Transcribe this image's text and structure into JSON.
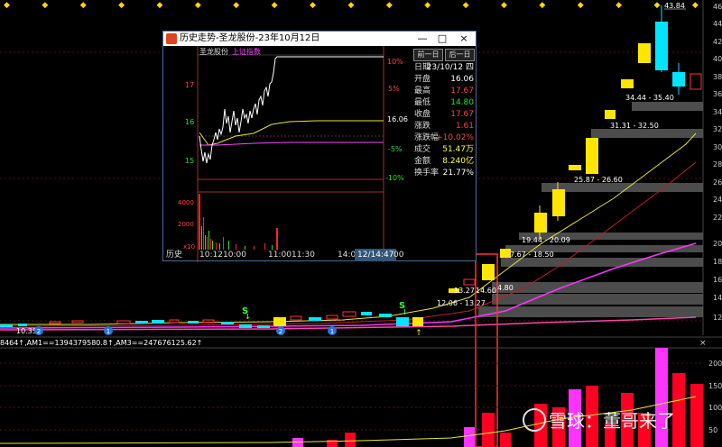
{
  "colors": {
    "up": "#ff3333",
    "down": "#00e5ff",
    "ma1": "#e6e633",
    "ma2": "#cc2222",
    "ma3": "#ff33ff",
    "ma4": "#ff44aa",
    "band": "#555555",
    "yellow_box": "#ffe600"
  },
  "main_chart": {
    "top_markers": "◆ ◆ ◆ ◆ ◆ ◆ ◆ ◆ ◆ ◆ ◆ ◆ ◆ ◆ ◆ ◆ ◆ ◆ ◆ ◆ ◆ ◆ ◆",
    "price_axis": [
      "46",
      "44",
      "42",
      "40",
      "38",
      "36",
      "34",
      "32",
      "30",
      "28",
      "26",
      "24",
      "22",
      "20",
      "18",
      "16",
      "14",
      "12"
    ],
    "high_label": "43.84",
    "low_label": "10.35",
    "range_labels": [
      {
        "text": "34.44 - 35.40"
      },
      {
        "text": "31.31 - 32.50"
      },
      {
        "text": "25.87 - 26.60"
      },
      {
        "text": "19.44 - 20.09"
      },
      {
        "text": "7.67 - 18.50"
      },
      {
        "text": "13.27"
      },
      {
        "text": "14.60"
      },
      {
        "text": "4.80"
      },
      {
        "text": "12.06 - 13.27"
      }
    ],
    "signal_labels": [
      "S",
      "S"
    ],
    "circle_markers": [
      "2",
      "1",
      "2",
      "1"
    ]
  },
  "volume_header": {
    "text": "8464↑,AM1==1394379580.8↑,AM3==247676125.62↑",
    "close": "×"
  },
  "volume_axis": [
    "200",
    "150",
    "100",
    "50"
  ],
  "watermark": "雪球：董哥来了",
  "popup": {
    "title": "历史走势-圣龙股份-23年10月12日",
    "window_buttons": [
      "—",
      "□",
      "×"
    ],
    "legend_stock": "圣龙股份",
    "legend_index": "上证指数",
    "price_ticks": [
      "17",
      "16",
      "15"
    ],
    "pct_ticks": [
      "10%",
      "5%",
      "-5%",
      "-10%"
    ],
    "prev_close": "16.06",
    "vol_ticks": [
      "4000",
      "2000",
      "x10"
    ],
    "time_ticks": [
      "10:12",
      "10:00",
      "11:00",
      "11:30",
      "14:00",
      "12/14:47",
      "00"
    ],
    "footer_label": "历史",
    "prev_btn": "前一日",
    "next_btn": "后一日",
    "info": [
      {
        "label": "日期",
        "value": "23/10/12 四",
        "color": "#ffffff"
      },
      {
        "label": "开盘",
        "value": "16.06",
        "color": "#ffffff"
      },
      {
        "label": "最高",
        "value": "17.67",
        "color": "#ff4444"
      },
      {
        "label": "最低",
        "value": "14.80",
        "color": "#33dd33"
      },
      {
        "label": "收盘",
        "value": "17.67",
        "color": "#ff4444"
      },
      {
        "label": "涨跌",
        "value": "1.61",
        "color": "#ff4444"
      },
      {
        "label": "涨跌幅",
        "value": "+10.02%",
        "color": "#ff4444"
      },
      {
        "label": "成交",
        "value": "51.47万",
        "color": "#ffff44"
      },
      {
        "label": "金额",
        "value": "8.240亿",
        "color": "#ffff44"
      },
      {
        "label": "换手率",
        "value": "21.77%",
        "color": "#ffffff"
      }
    ]
  }
}
